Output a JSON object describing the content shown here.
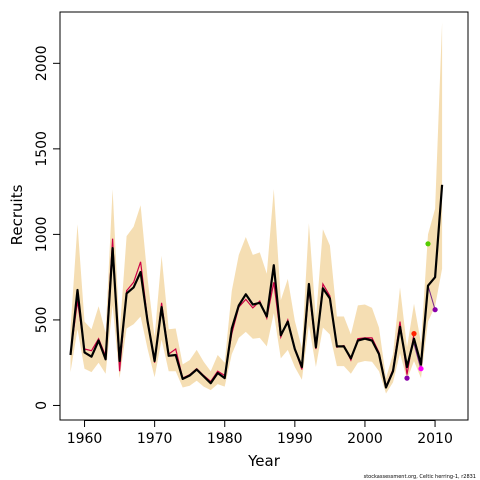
{
  "chart_data": {
    "type": "line",
    "xlabel": "Year",
    "ylabel": "Recruits",
    "caption": "stockassessment.org, Celtic herring-1, r2831",
    "xlim": [
      1956.5,
      2014.7
    ],
    "ylim": [
      -85,
      2300
    ],
    "x_ticks": [
      1960,
      1970,
      1980,
      1990,
      2000,
      2010
    ],
    "y_ticks": [
      0,
      500,
      1000,
      1500,
      2000
    ],
    "grid": false,
    "legend": "none",
    "colors": {
      "band": "#f5deb3",
      "main": "#000000",
      "retro": "#cc0044",
      "retro_alt": "#7a2b8a",
      "point_red": "#ff2200",
      "point_green": "#55cc00",
      "point_purple": "#8800aa",
      "point_magenta": "#ff00ff"
    },
    "series": [
      {
        "role": "estimate",
        "x": [
          1958,
          1959,
          1960,
          1961,
          1962,
          1963,
          1964,
          1965,
          1966,
          1967,
          1968,
          1969,
          1970,
          1971,
          1972,
          1973,
          1974,
          1975,
          1976,
          1977,
          1978,
          1979,
          1980,
          1981,
          1982,
          1983,
          1984,
          1985,
          1986,
          1987,
          1988,
          1989,
          1990,
          1991,
          1992,
          1993,
          1994,
          1995,
          1996,
          1997,
          1998,
          1999,
          2000,
          2001,
          2002,
          2003,
          2004,
          2005,
          2006,
          2007,
          2008,
          2009,
          2010,
          2011
        ],
        "values": [
          295,
          675,
          310,
          285,
          380,
          270,
          920,
          260,
          655,
          690,
          780,
          490,
          260,
          575,
          290,
          295,
          155,
          175,
          210,
          170,
          130,
          190,
          160,
          450,
          585,
          650,
          590,
          600,
          520,
          820,
          410,
          490,
          330,
          225,
          710,
          340,
          685,
          625,
          345,
          345,
          275,
          380,
          390,
          380,
          300,
          105,
          200,
          460,
          225,
          390,
          240,
          700,
          750,
          1290
        ],
        "lower": [
          195,
          445,
          215,
          195,
          250,
          185,
          585,
          160,
          450,
          475,
          520,
          330,
          165,
          385,
          200,
          200,
          105,
          115,
          145,
          110,
          90,
          125,
          110,
          300,
          395,
          430,
          390,
          395,
          345,
          540,
          275,
          325,
          225,
          150,
          470,
          225,
          455,
          415,
          230,
          230,
          185,
          250,
          260,
          255,
          200,
          70,
          135,
          305,
          150,
          260,
          160,
          490,
          580,
          800
        ],
        "upper": [
          445,
          1060,
          490,
          445,
          580,
          425,
          1265,
          420,
          990,
          1045,
          1170,
          740,
          400,
          875,
          445,
          450,
          240,
          265,
          325,
          255,
          200,
          295,
          250,
          670,
          880,
          985,
          880,
          895,
          770,
          1265,
          615,
          740,
          495,
          335,
          1065,
          505,
          1030,
          935,
          520,
          520,
          415,
          585,
          590,
          570,
          455,
          160,
          300,
          690,
          340,
          595,
          365,
          1000,
          1150,
          2240
        ]
      },
      {
        "role": "retrospective",
        "x": [
          1958,
          1959,
          1960,
          1961,
          1962,
          1963,
          1964,
          1965,
          1966,
          1967,
          1968,
          1969,
          1970,
          1971,
          1972,
          1973,
          1974,
          1975,
          1976,
          1977,
          1978,
          1979,
          1980,
          1981,
          1982,
          1983,
          1984,
          1985,
          1986,
          1987,
          1988,
          1989,
          1990,
          1991,
          1992,
          1993,
          1994,
          1995,
          1996,
          1997,
          1998,
          1999,
          2000,
          2001,
          2002,
          2003,
          2004,
          2005,
          2006,
          2007
        ],
        "values": [
          300,
          610,
          330,
          320,
          390,
          290,
          975,
          200,
          670,
          720,
          840,
          500,
          250,
          600,
          300,
          330,
          160,
          180,
          215,
          175,
          140,
          200,
          175,
          420,
          575,
          620,
          570,
          610,
          510,
          720,
          400,
          500,
          330,
          210,
          680,
          330,
          710,
          640,
          340,
          350,
          265,
          390,
          395,
          395,
          310,
          110,
          210,
          490,
          180,
          420
        ]
      },
      {
        "role": "retrospective",
        "x": [
          2007,
          2008,
          2009,
          2010
        ],
        "values": [
          360,
          210,
          700,
          560
        ]
      }
    ],
    "points": [
      {
        "x": 2007,
        "y": 420,
        "color": "#ff2200"
      },
      {
        "x": 2009,
        "y": 945,
        "color": "#55cc00"
      },
      {
        "x": 2010,
        "y": 560,
        "color": "#8800aa"
      },
      {
        "x": 2006,
        "y": 160,
        "color": "#8800aa"
      },
      {
        "x": 2008,
        "y": 215,
        "color": "#ff00ff"
      }
    ]
  }
}
